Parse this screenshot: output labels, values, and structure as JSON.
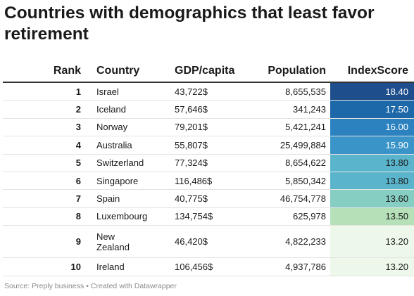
{
  "title": "Countries with demographics that least favor retirement",
  "chart_data": {
    "type": "table",
    "title": "Countries with demographics that least favor retirement",
    "columns": [
      "Rank",
      "Country",
      "GDP/capita",
      "Population",
      "IndexScore"
    ],
    "rows": [
      {
        "rank": "1",
        "country": "Israel",
        "gdp": "43,722$",
        "population": "8,655,535",
        "index": "18.40",
        "index_value": 18.4,
        "color": "#1f4e8c",
        "text_color": "#ffffff"
      },
      {
        "rank": "2",
        "country": "Iceland",
        "gdp": "57,646$",
        "population": "341,243",
        "index": "17.50",
        "index_value": 17.5,
        "color": "#1d68a9",
        "text_color": "#ffffff"
      },
      {
        "rank": "3",
        "country": "Norway",
        "gdp": "79,201$",
        "population": "5,421,241",
        "index": "16.00",
        "index_value": 16.0,
        "color": "#2c81bf",
        "text_color": "#ffffff"
      },
      {
        "rank": "4",
        "country": "Australia",
        "gdp": "55,807$",
        "population": "25,499,884",
        "index": "15.90",
        "index_value": 15.9,
        "color": "#3a94c8",
        "text_color": "#ffffff"
      },
      {
        "rank": "5",
        "country": "Switzerland",
        "gdp": "77,324$",
        "population": "8,654,622",
        "index": "13.80",
        "index_value": 13.8,
        "color": "#5ab4cc",
        "text_color": "#1a1a1a"
      },
      {
        "rank": "6",
        "country": "Singapore",
        "gdp": "116,486$",
        "population": "5,850,342",
        "index": "13.80",
        "index_value": 13.8,
        "color": "#5ab4cc",
        "text_color": "#1a1a1a"
      },
      {
        "rank": "7",
        "country": "Spain",
        "gdp": "40,775$",
        "population": "46,754,778",
        "index": "13.60",
        "index_value": 13.6,
        "color": "#86cdc2",
        "text_color": "#1a1a1a"
      },
      {
        "rank": "8",
        "country": "Luxembourg",
        "gdp": "134,754$",
        "population": "625,978",
        "index": "13.50",
        "index_value": 13.5,
        "color": "#b5e0b8",
        "text_color": "#1a1a1a"
      },
      {
        "rank": "9",
        "country": "New Zealand",
        "gdp": "46,420$",
        "population": "4,822,233",
        "index": "13.20",
        "index_value": 13.2,
        "color": "#eef8ea",
        "text_color": "#1a1a1a"
      },
      {
        "rank": "10",
        "country": "Ireland",
        "gdp": "106,456$",
        "population": "4,937,786",
        "index": "13.20",
        "index_value": 13.2,
        "color": "#eef8ea",
        "text_color": "#1a1a1a"
      }
    ]
  },
  "footer": {
    "source": "Source: Preply business",
    "separator": "•",
    "credit": "Created with Datawrapper"
  }
}
